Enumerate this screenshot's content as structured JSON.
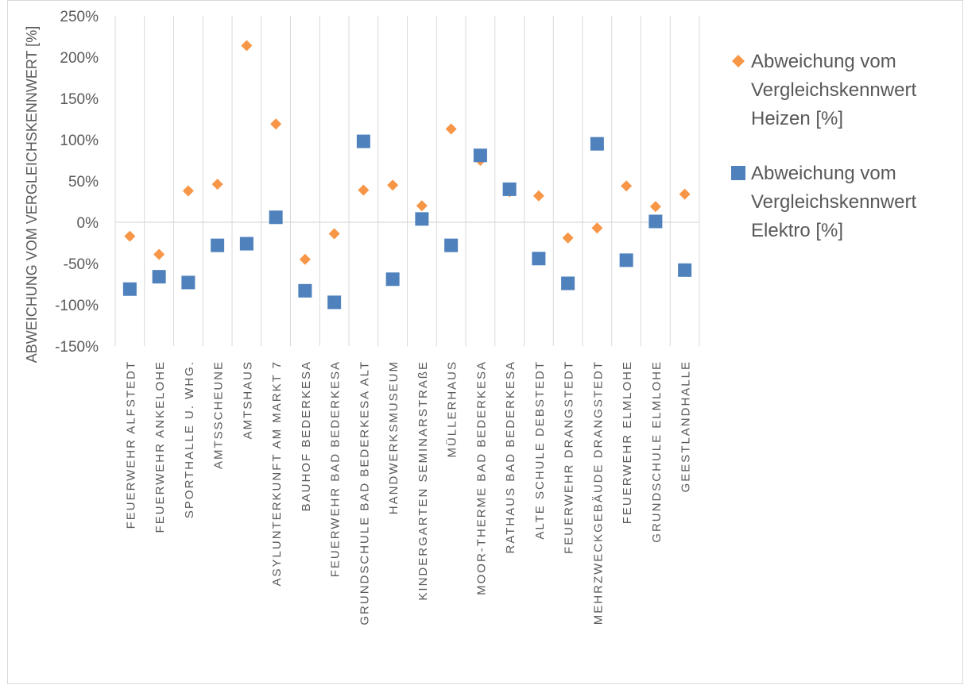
{
  "chart_data": {
    "type": "scatter",
    "ylabel": "ABWEICHUNG VOM VERGLEICHSKENNWERT [%]",
    "ylim": [
      -150,
      250
    ],
    "ytick_values": [
      250,
      200,
      150,
      100,
      50,
      0,
      -50,
      -100,
      -150
    ],
    "ytick_labels": [
      "250%",
      "200%",
      "150%",
      "100%",
      "50%",
      "0%",
      "-50%",
      "-100%",
      "-150%"
    ],
    "grid": "vertical",
    "legend_position": "right",
    "categories": [
      "FEUERWEHR ALFSTEDT",
      "FEUERWEHR ANKELOHE",
      "SPORTHALLE U. WHG.",
      "AMTSSCHEUNE",
      "AMTSHAUS",
      "ASYLUNTERKUNFT AM MARKT 7",
      "BAUHOF BEDERKESA",
      "FEUERWEHR BAD BEDERKESA",
      "GRUNDSCHULE BAD BEDERKESA ALT",
      "HANDWERKSMUSEUM",
      "KINDERGARTEN SEMINARSTRAßE",
      "MÜLLERHAUS",
      "MOOR-THERME BAD BEDERKESA",
      "RATHAUS BAD BEDERKESA",
      "ALTE SCHULE DEBSTEDT",
      "FEUERWEHR DRANGSTEDT",
      "MEHRZWECKGEBÄUDE DRANGSTEDT",
      "FEUERWEHR ELMLOHE",
      "GRUNDSCHULE ELMLOHE",
      "GEESTLANDHALLE"
    ],
    "series": [
      {
        "legend_lines": [
          "Abweichung vom",
          "Vergleichskennwert",
          "Heizen [%]"
        ],
        "marker": "diamond",
        "color": "#F79646",
        "values": [
          -17,
          -39,
          38,
          46,
          214,
          119,
          -45,
          -14,
          39,
          45,
          20,
          113,
          75,
          37,
          32,
          -19,
          -7,
          44,
          19,
          34
        ]
      },
      {
        "legend_lines": [
          "Abweichung vom",
          "Vergleichskennwert",
          "Elektro [%]"
        ],
        "marker": "square",
        "color": "#4F81BD",
        "values": [
          -81,
          -66,
          -73,
          -28,
          -26,
          6,
          -83,
          -97,
          98,
          -69,
          4,
          -28,
          81,
          40,
          -44,
          -74,
          95,
          -46,
          1,
          -58
        ]
      }
    ]
  }
}
